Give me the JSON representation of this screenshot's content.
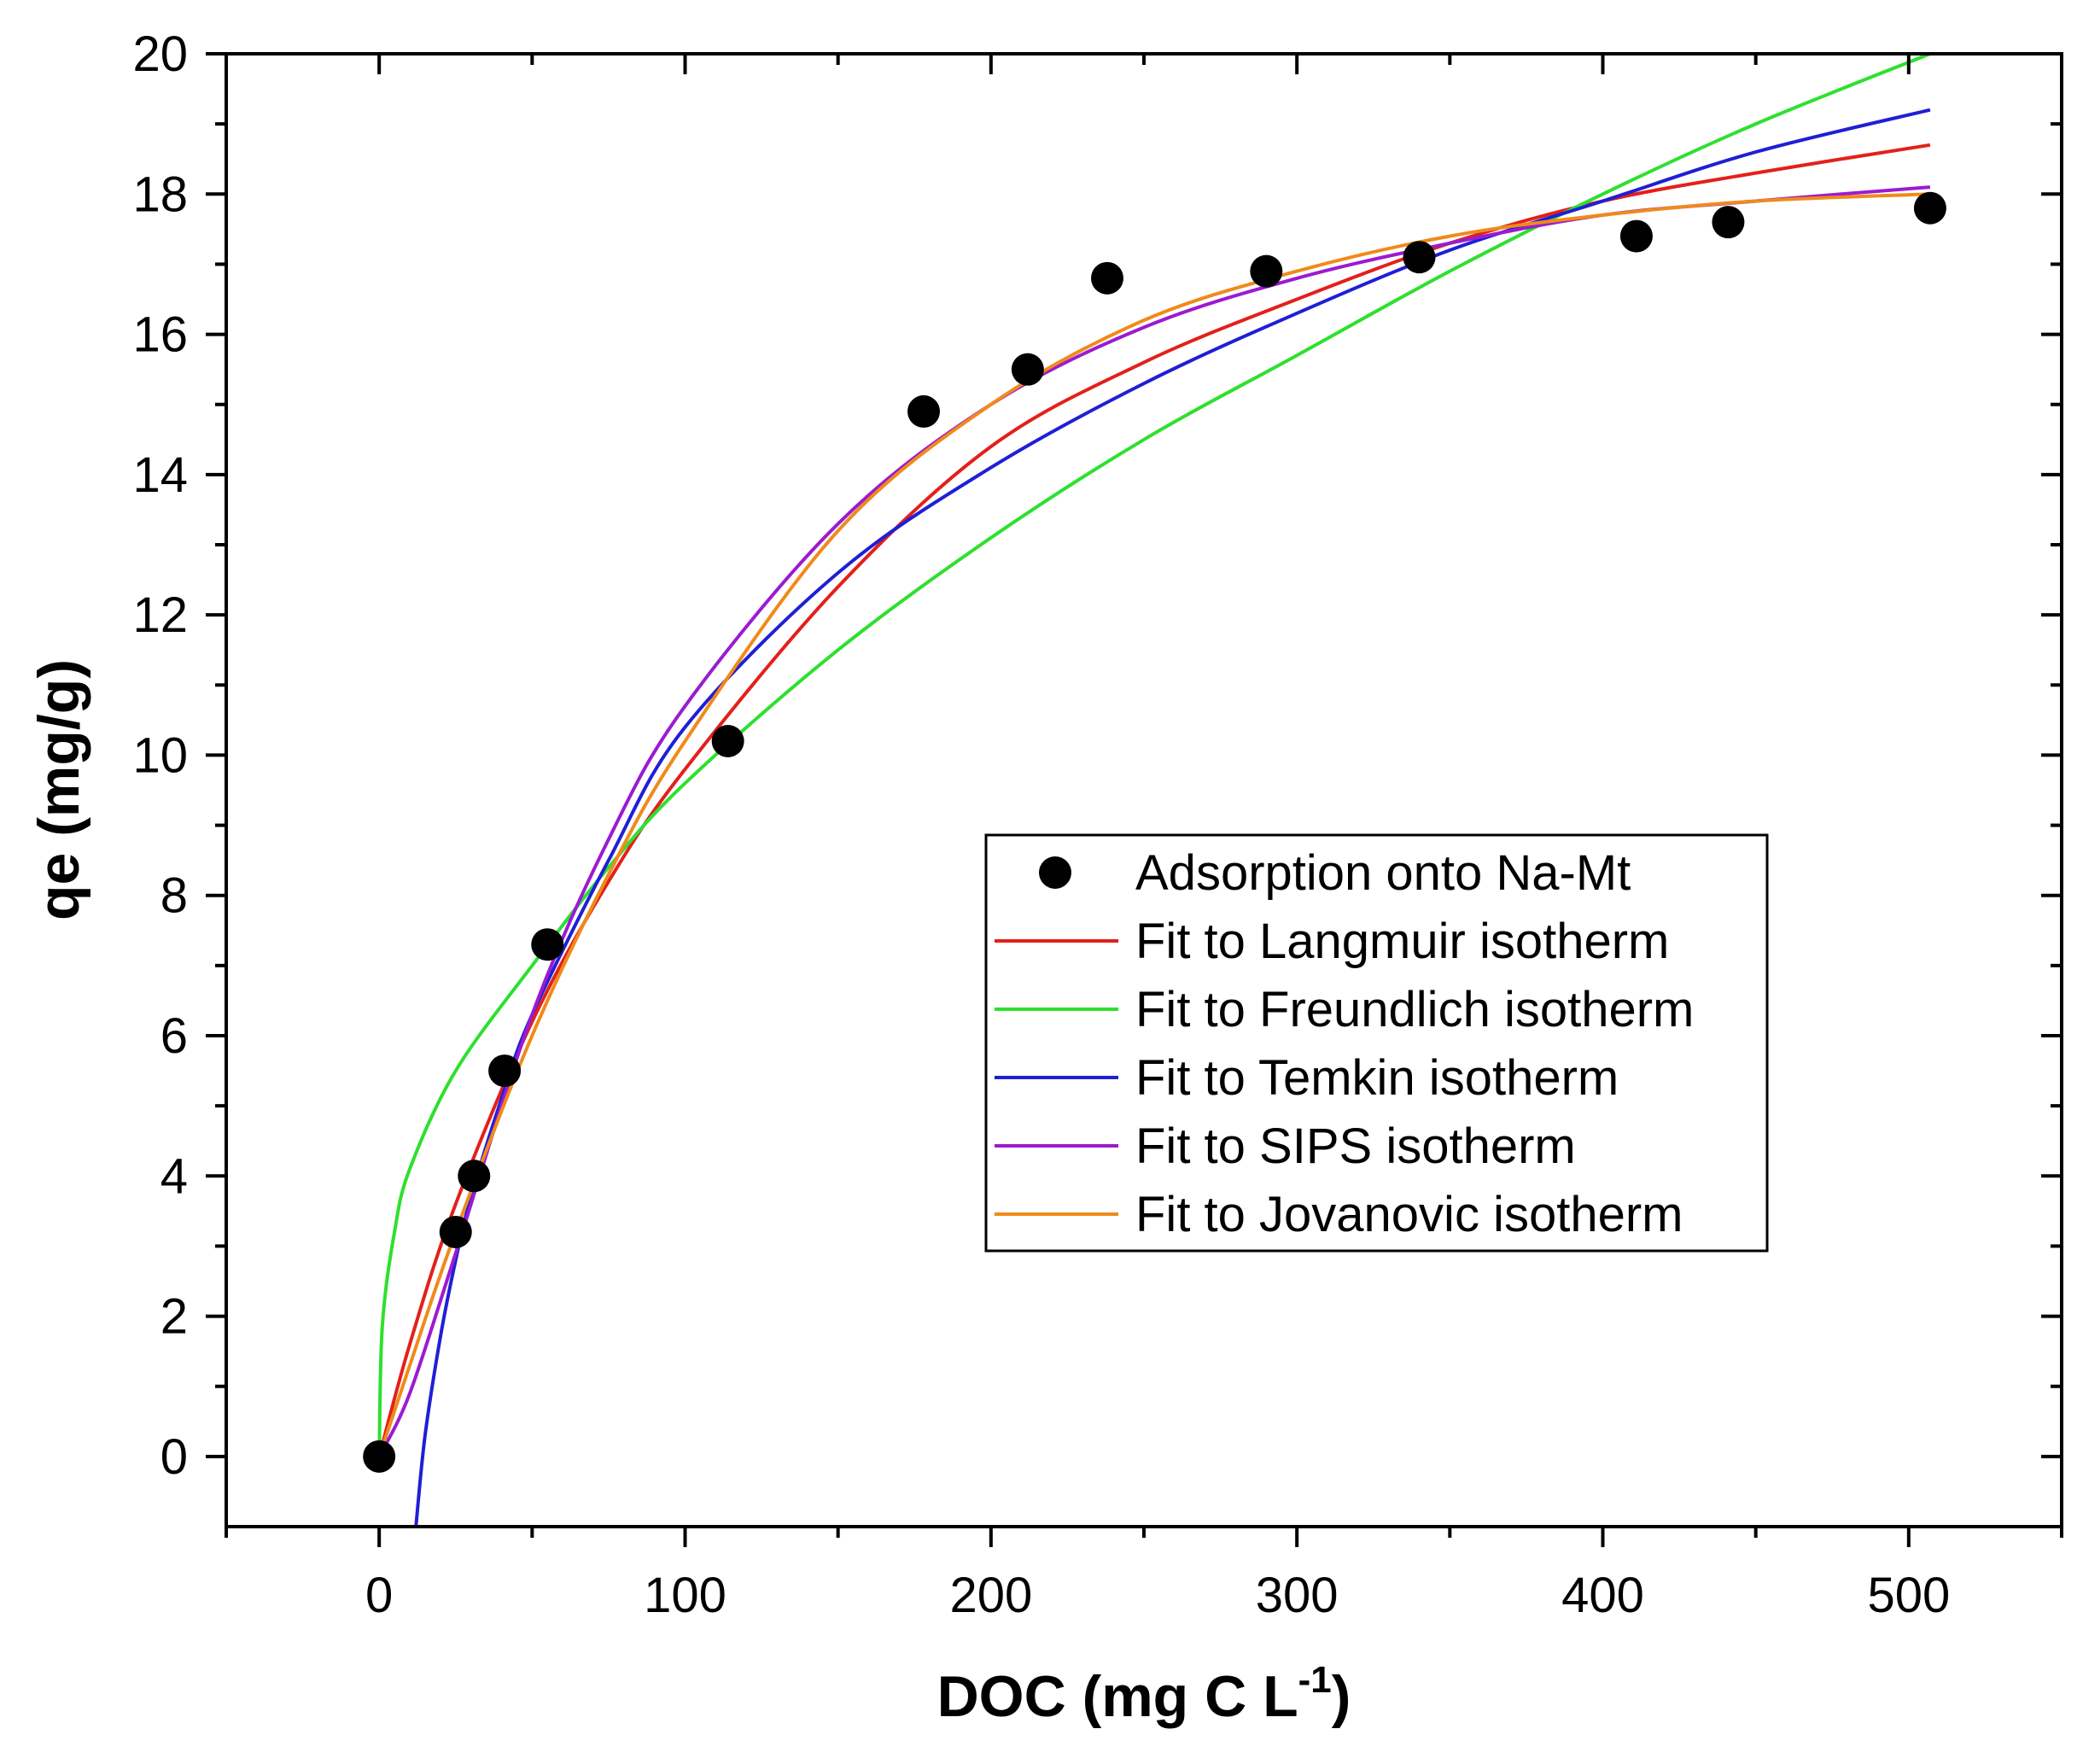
{
  "chart_data": {
    "type": "scatter",
    "title": "",
    "xlabel": "DOC (mg C L",
    "xlabel_sup": "-1",
    "xlabel_close": ")",
    "ylabel": "qe (mg/g)",
    "xlim": [
      -50,
      550
    ],
    "ylim": [
      -1,
      20
    ],
    "xticks": [
      0,
      100,
      200,
      300,
      400,
      500
    ],
    "xtick_labels": [
      "0",
      "100",
      "200",
      "300",
      "400",
      "500"
    ],
    "yticks": [
      0,
      2,
      4,
      6,
      8,
      10,
      12,
      14,
      16,
      18,
      20
    ],
    "ytick_labels": [
      "0",
      "2",
      "4",
      "6",
      "8",
      "10",
      "12",
      "14",
      "16",
      "18",
      "20"
    ],
    "grid": false,
    "legend_position": "center-right",
    "scatter": {
      "name": "Adsorption onto Na-Mt",
      "color": "#000000",
      "x": [
        0,
        25,
        31,
        41,
        55,
        114,
        178,
        212,
        238,
        290,
        340,
        411,
        441,
        507
      ],
      "y": [
        0,
        3.2,
        4.0,
        5.5,
        7.3,
        10.2,
        14.9,
        15.5,
        16.8,
        16.9,
        17.1,
        17.4,
        17.6,
        17.8
      ]
    },
    "series": [
      {
        "name": "Fit to Langmuir isotherm",
        "color": "#e3201b",
        "x": [
          0,
          10,
          25,
          50,
          75,
          100,
          150,
          200,
          250,
          300,
          350,
          400,
          450,
          507
        ],
        "y": [
          0,
          1.6,
          3.6,
          6.2,
          8.2,
          9.8,
          12.4,
          14.4,
          15.6,
          16.5,
          17.3,
          17.9,
          18.3,
          18.7
        ]
      },
      {
        "name": "Fit to Freundlich isotherm",
        "color": "#2ee02e",
        "x": [
          0,
          1,
          5,
          10,
          25,
          50,
          75,
          100,
          150,
          200,
          250,
          300,
          350,
          400,
          450,
          507
        ],
        "y": [
          0,
          1.85,
          3.2,
          4.1,
          5.5,
          7.0,
          8.4,
          9.6,
          11.5,
          13.1,
          14.5,
          15.7,
          16.9,
          18.0,
          19.0,
          20.1
        ]
      },
      {
        "name": "Fit to Temkin isotherm",
        "color": "#1f1fd6",
        "x": [
          12,
          15,
          20,
          25,
          30,
          40,
          50,
          75,
          100,
          150,
          200,
          250,
          300,
          350,
          400,
          450,
          507
        ],
        "y": [
          -1,
          0.3,
          1.7,
          2.8,
          3.7,
          5.1,
          6.3,
          8.5,
          10.4,
          12.6,
          14.1,
          15.3,
          16.3,
          17.2,
          17.9,
          18.6,
          19.2
        ]
      },
      {
        "name": "Fit to SIPS isotherm",
        "color": "#9b1bd1",
        "x": [
          0,
          10,
          25,
          50,
          75,
          100,
          150,
          200,
          250,
          300,
          350,
          400,
          450,
          507
        ],
        "y": [
          0,
          0.9,
          2.9,
          6.3,
          8.8,
          10.7,
          13.3,
          15.0,
          16.1,
          16.8,
          17.3,
          17.7,
          17.9,
          18.1
        ]
      },
      {
        "name": "Fit to Jovanovic isotherm",
        "color": "#f08a1a",
        "x": [
          0,
          10,
          25,
          50,
          75,
          100,
          150,
          200,
          250,
          300,
          350,
          400,
          450,
          507
        ],
        "y": [
          0,
          1.3,
          3.2,
          6.0,
          8.3,
          10.2,
          13.2,
          15.0,
          16.2,
          16.9,
          17.4,
          17.7,
          17.9,
          18.0
        ]
      }
    ]
  }
}
